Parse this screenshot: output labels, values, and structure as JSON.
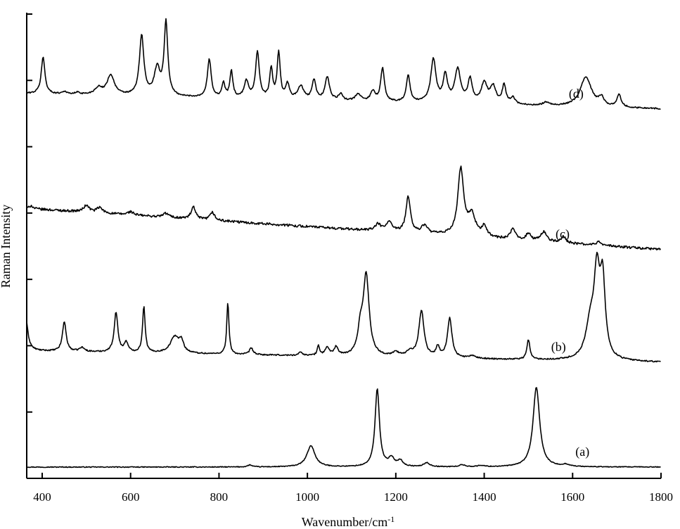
{
  "chart_data": {
    "type": "line",
    "xlabel": "Wavenumber/cm",
    "xlabel_superscript": "-1",
    "ylabel": "Raman Intensity",
    "xlim": [
      365,
      1800
    ],
    "xticks": [
      400,
      600,
      800,
      1000,
      1200,
      1400,
      1600,
      1800
    ],
    "ylim": [
      0,
      7
    ],
    "yticks": [
      0,
      1,
      2,
      3,
      4,
      5,
      6,
      7
    ],
    "ytick_labels_visible": false,
    "grid": false,
    "legend": "none",
    "line_color": "#000000",
    "series": [
      {
        "name": "(a)",
        "label_x": 1600,
        "baseline": 0.17,
        "end_level": 0.17,
        "noise": 0.006,
        "peaks": [
          [
            870,
            0.03,
            6
          ],
          [
            1008,
            0.32,
            11
          ],
          [
            1158,
            1.17,
            6
          ],
          [
            1190,
            0.12,
            8
          ],
          [
            1210,
            0.09,
            7
          ],
          [
            1270,
            0.06,
            8
          ],
          [
            1350,
            0.03,
            8
          ],
          [
            1393,
            0.02,
            8
          ],
          [
            1518,
            1.2,
            9
          ],
          [
            1585,
            0.03,
            10
          ]
        ]
      },
      {
        "name": "(b)",
        "label_x": 1545,
        "baseline": 1.92,
        "end_level": 1.75,
        "noise": 0.01,
        "peaks": [
          [
            362,
            0.55,
            6
          ],
          [
            450,
            0.45,
            5
          ],
          [
            490,
            0.06,
            7
          ],
          [
            567,
            0.6,
            5
          ],
          [
            590,
            0.15,
            5
          ],
          [
            630,
            0.7,
            3.5
          ],
          [
            700,
            0.25,
            12
          ],
          [
            715,
            0.15,
            6
          ],
          [
            820,
            0.78,
            3
          ],
          [
            873,
            0.1,
            5
          ],
          [
            985,
            0.05,
            5
          ],
          [
            1025,
            0.15,
            3
          ],
          [
            1045,
            0.12,
            6
          ],
          [
            1065,
            0.13,
            5
          ],
          [
            1120,
            0.35,
            7
          ],
          [
            1133,
            1.2,
            8
          ],
          [
            1200,
            0.06,
            10
          ],
          [
            1232,
            0.08,
            8
          ],
          [
            1258,
            0.7,
            7
          ],
          [
            1295,
            0.15,
            5
          ],
          [
            1322,
            0.6,
            6
          ],
          [
            1372,
            0.04,
            8
          ],
          [
            1500,
            0.3,
            4
          ],
          [
            1640,
            0.5,
            12
          ],
          [
            1655,
            1.2,
            8
          ],
          [
            1668,
            1.1,
            7
          ]
        ]
      },
      {
        "name": "(c)",
        "label_x": 1555,
        "baseline": 4.07,
        "end_level": 3.45,
        "noise": 0.018,
        "peaks": [
          [
            375,
            0.05,
            4
          ],
          [
            500,
            0.1,
            8
          ],
          [
            530,
            0.08,
            8
          ],
          [
            600,
            0.05,
            8
          ],
          [
            680,
            0.06,
            8
          ],
          [
            742,
            0.18,
            6
          ],
          [
            785,
            0.12,
            6
          ],
          [
            1160,
            0.1,
            8
          ],
          [
            1185,
            0.15,
            7
          ],
          [
            1228,
            0.55,
            6
          ],
          [
            1265,
            0.12,
            8
          ],
          [
            1347,
            1.0,
            8
          ],
          [
            1372,
            0.3,
            10
          ],
          [
            1400,
            0.15,
            7
          ],
          [
            1465,
            0.15,
            7
          ],
          [
            1500,
            0.1,
            7
          ],
          [
            1535,
            0.15,
            8
          ],
          [
            1580,
            0.1,
            6
          ],
          [
            1660,
            0.05,
            8
          ]
        ]
      },
      {
        "name": "(d)",
        "label_x": 1585,
        "baseline": 5.8,
        "end_level": 5.57,
        "noise": 0.01,
        "peaks": [
          [
            402,
            0.55,
            5
          ],
          [
            450,
            0.04,
            6
          ],
          [
            480,
            0.03,
            6
          ],
          [
            527,
            0.1,
            10
          ],
          [
            555,
            0.3,
            10
          ],
          [
            625,
            0.9,
            6
          ],
          [
            660,
            0.4,
            8
          ],
          [
            680,
            1.1,
            5
          ],
          [
            778,
            0.58,
            5
          ],
          [
            810,
            0.22,
            4
          ],
          [
            828,
            0.4,
            4
          ],
          [
            862,
            0.25,
            6
          ],
          [
            887,
            0.7,
            5
          ],
          [
            918,
            0.45,
            4
          ],
          [
            935,
            0.7,
            4
          ],
          [
            955,
            0.22,
            5
          ],
          [
            985,
            0.2,
            8
          ],
          [
            1015,
            0.3,
            5
          ],
          [
            1045,
            0.35,
            6
          ],
          [
            1075,
            0.1,
            5
          ],
          [
            1115,
            0.1,
            8
          ],
          [
            1148,
            0.15,
            6
          ],
          [
            1170,
            0.5,
            5
          ],
          [
            1228,
            0.4,
            5
          ],
          [
            1285,
            0.65,
            7
          ],
          [
            1312,
            0.4,
            6
          ],
          [
            1340,
            0.5,
            8
          ],
          [
            1368,
            0.35,
            6
          ],
          [
            1400,
            0.3,
            8
          ],
          [
            1420,
            0.25,
            8
          ],
          [
            1445,
            0.28,
            5
          ],
          [
            1465,
            0.1,
            6
          ],
          [
            1540,
            0.05,
            8
          ],
          [
            1630,
            0.45,
            15
          ],
          [
            1665,
            0.12,
            7
          ],
          [
            1705,
            0.18,
            6
          ]
        ]
      }
    ]
  }
}
